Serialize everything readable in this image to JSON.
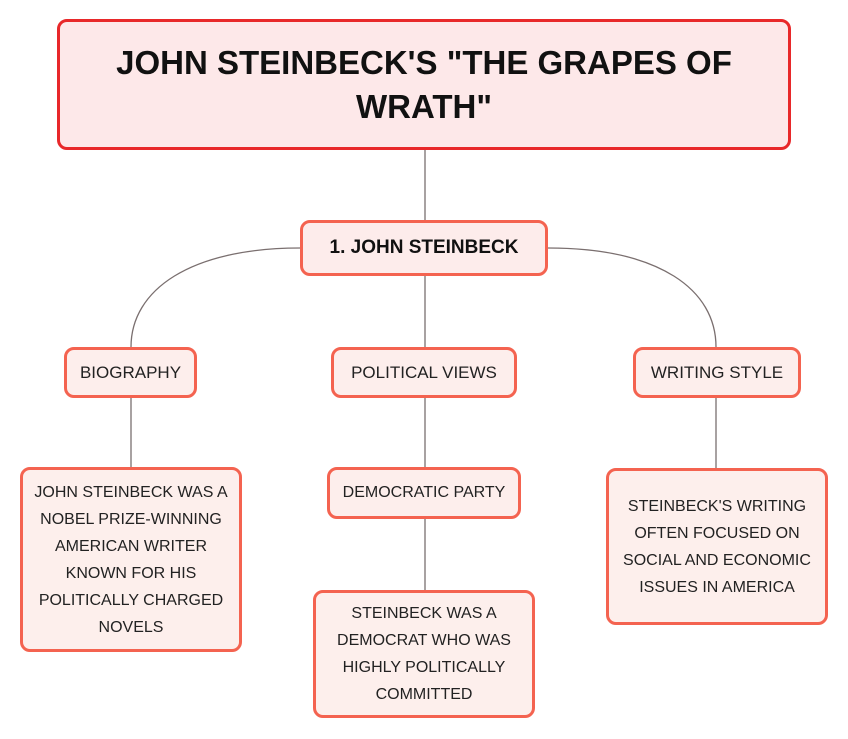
{
  "root": {
    "title": "JOHN STEINBECK'S \"THE GRAPES OF WRATH\""
  },
  "main": {
    "title": "1. JOHN STEINBECK"
  },
  "branches": [
    {
      "label": "BIOGRAPHY",
      "detail": "JOHN STEINBECK WAS A NOBEL PRIZE-WINNING AMERICAN WRITER KNOWN FOR HIS POLITICALLY CHARGED NOVELS"
    },
    {
      "label": "POLITICAL VIEWS",
      "sub": "DEMOCRATIC PARTY",
      "detail": "STEINBECK WAS A DEMOCRAT WHO WAS HIGHLY POLITICALLY COMMITTED"
    },
    {
      "label": "WRITING STYLE",
      "detail": "STEINBECK'S WRITING OFTEN FOCUSED ON SOCIAL AND ECONOMIC ISSUES IN AMERICA"
    }
  ],
  "colors": {
    "root_border": "#e8282a",
    "node_border": "#f46350",
    "fill": "#fdeceb",
    "connector": "#7a6f6f"
  }
}
